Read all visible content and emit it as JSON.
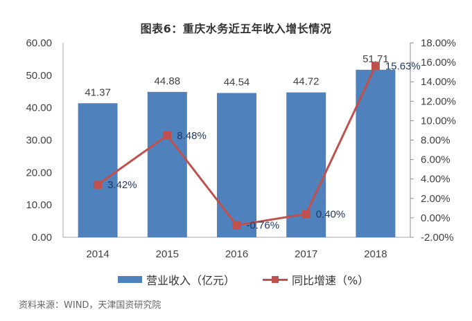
{
  "chart_data": {
    "type": "bar+line",
    "title": "图表6：重庆水务近五年收入增长情况",
    "categories": [
      "2014",
      "2015",
      "2016",
      "2017",
      "2018"
    ],
    "series": [
      {
        "name": "营业收入（亿元）",
        "type": "bar",
        "axis": "left",
        "color": "#4f81bd",
        "values": [
          41.37,
          44.88,
          44.54,
          44.72,
          51.71
        ],
        "labels": [
          "41.37",
          "44.88",
          "44.54",
          "44.72",
          "51.71"
        ]
      },
      {
        "name": "同比增速（%）",
        "type": "line",
        "axis": "right",
        "color": "#c0504d",
        "values": [
          3.42,
          8.48,
          -0.76,
          0.4,
          15.63
        ],
        "labels": [
          "3.42%",
          "8.48%",
          "-0.76%",
          "0.40%",
          "15.63%"
        ]
      }
    ],
    "y_left": {
      "min": 0,
      "max": 60,
      "step": 10,
      "ticks": [
        "0.00",
        "10.00",
        "20.00",
        "30.00",
        "40.00",
        "50.00",
        "60.00"
      ]
    },
    "y_right": {
      "min": -2,
      "max": 18,
      "step": 2,
      "ticks": [
        "-2.00%",
        "0.00%",
        "2.00%",
        "4.00%",
        "6.00%",
        "8.00%",
        "10.00%",
        "12.00%",
        "14.00%",
        "16.00%",
        "18.00%"
      ]
    },
    "grid": false,
    "legend_position": "bottom"
  },
  "source": "资料来源：WIND，天津国资研究院"
}
